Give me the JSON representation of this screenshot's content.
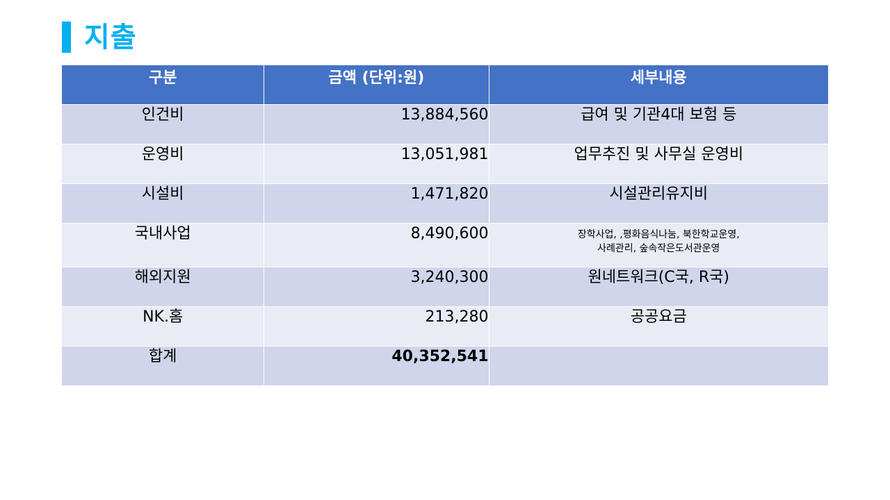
{
  "title": "지출",
  "colors": {
    "accent": "#00b0f0",
    "header_bg": "#4472c4",
    "row_odd": "#cfd5ea",
    "row_even": "#e9ebf5"
  },
  "table": {
    "headers": [
      "구분",
      "금액 (단위:원)",
      "세부내용"
    ],
    "rows": [
      {
        "category": "인건비",
        "amount": "13,884,560",
        "detail": "급여 및 기관4대 보험 등"
      },
      {
        "category": "운영비",
        "amount": "13,051,981",
        "detail": "업무추진 및 사무실 운영비"
      },
      {
        "category": "시설비",
        "amount": "1,471,820",
        "detail": "시설관리유지비"
      },
      {
        "category": "국내사업",
        "amount": "8,490,600",
        "detail_lines": [
          "장학사업, ,평화음식나눔, 북한학교운영,",
          "사례관리, 숲속작은도서관운영"
        ]
      },
      {
        "category": "해외지원",
        "amount": "3,240,300",
        "detail": "원네트워크(C국, R국)"
      },
      {
        "category": "NK.홈",
        "amount": "213,280",
        "detail": "공공요금"
      },
      {
        "category": "합계",
        "amount": "40,352,541",
        "detail": ""
      }
    ]
  }
}
